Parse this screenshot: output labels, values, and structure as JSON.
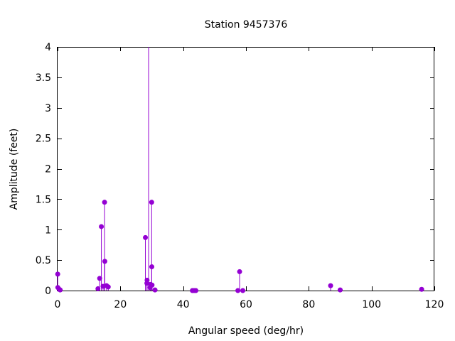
{
  "chart_data": {
    "type": "scatter",
    "title": "Station 9457376",
    "xlabel": "Angular speed (deg/hr)",
    "ylabel": "Amplitude (feet)",
    "xlim": [
      0,
      120
    ],
    "ylim": [
      0,
      4
    ],
    "xticks": [
      0,
      20,
      40,
      60,
      80,
      100,
      120
    ],
    "xtick_labels": [
      "0",
      "20",
      "40",
      "60",
      "80",
      "100",
      "120"
    ],
    "yticks": [
      0,
      0.5,
      1,
      1.5,
      2,
      2.5,
      3,
      3.5,
      4
    ],
    "ytick_labels": [
      "0",
      "0.5",
      "1",
      "1.5",
      "2",
      "2.5",
      "3",
      "3.5",
      "4"
    ],
    "style": "impulses with points",
    "color": "#9400d3",
    "grid": false,
    "series": [
      {
        "x": [
          0.04,
          0.08,
          0.54,
          0.82,
          12.85,
          13.4,
          13.94,
          14.49,
          14.96,
          15.04,
          15.59,
          16.14,
          27.97,
          28.44,
          28.51,
          28.99,
          29.46,
          29.53,
          29.96,
          30.0,
          30.08,
          31.02,
          42.93,
          43.48,
          44.03,
          57.42,
          57.97,
          58.98,
          86.95,
          90.0,
          115.94
        ],
        "y": [
          0.27,
          0.05,
          0.02,
          0.01,
          0.03,
          0.2,
          1.05,
          0.07,
          1.45,
          0.48,
          0.08,
          0.06,
          0.87,
          0.12,
          0.17,
          4.0,
          0.05,
          0.1,
          1.45,
          0.39,
          0.09,
          0.01,
          0.0,
          0.0,
          0.0,
          0.0,
          0.31,
          0.0,
          0.08,
          0.01,
          0.02
        ]
      }
    ]
  }
}
